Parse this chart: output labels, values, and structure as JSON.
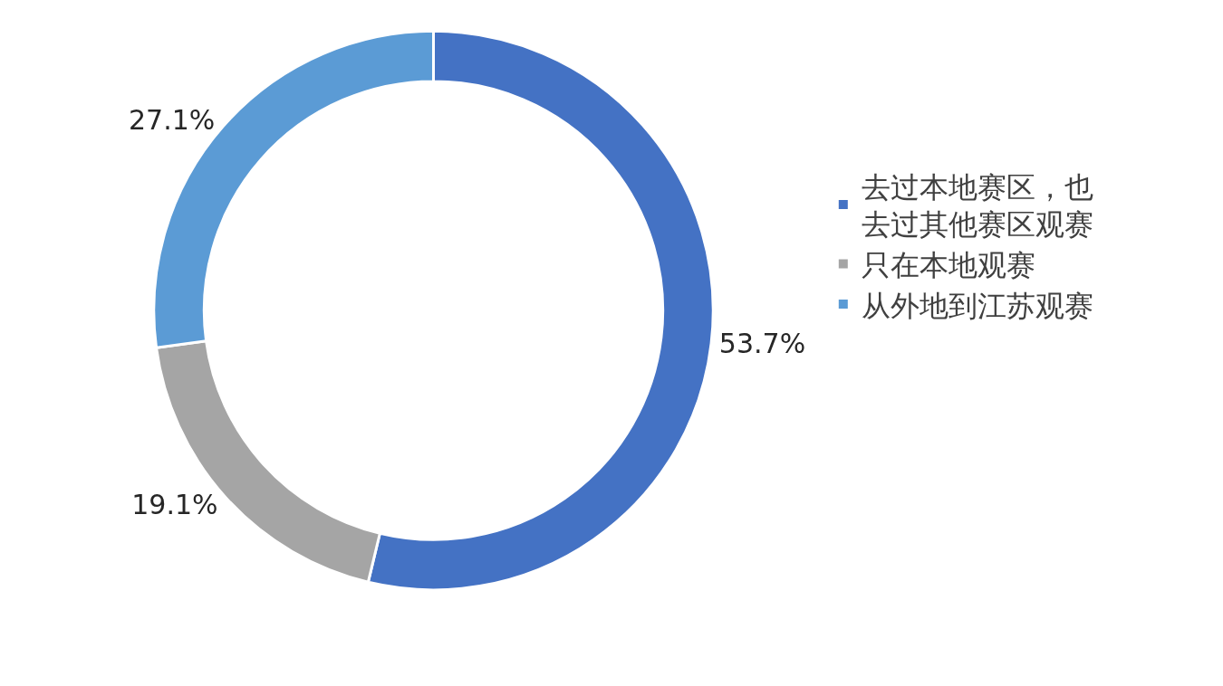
{
  "chart_data": {
    "type": "donut",
    "categories": [
      "去过本地赛区，也去过其他赛区观赛",
      "只在本地观赛",
      "从外地到江苏观赛"
    ],
    "values": [
      53.7,
      19.1,
      27.1
    ],
    "colors": [
      "#4472c4",
      "#a5a5a5",
      "#5b9bd5"
    ],
    "value_labels": [
      "53.7%",
      "19.1%",
      "27.1%"
    ],
    "legend": "right"
  }
}
